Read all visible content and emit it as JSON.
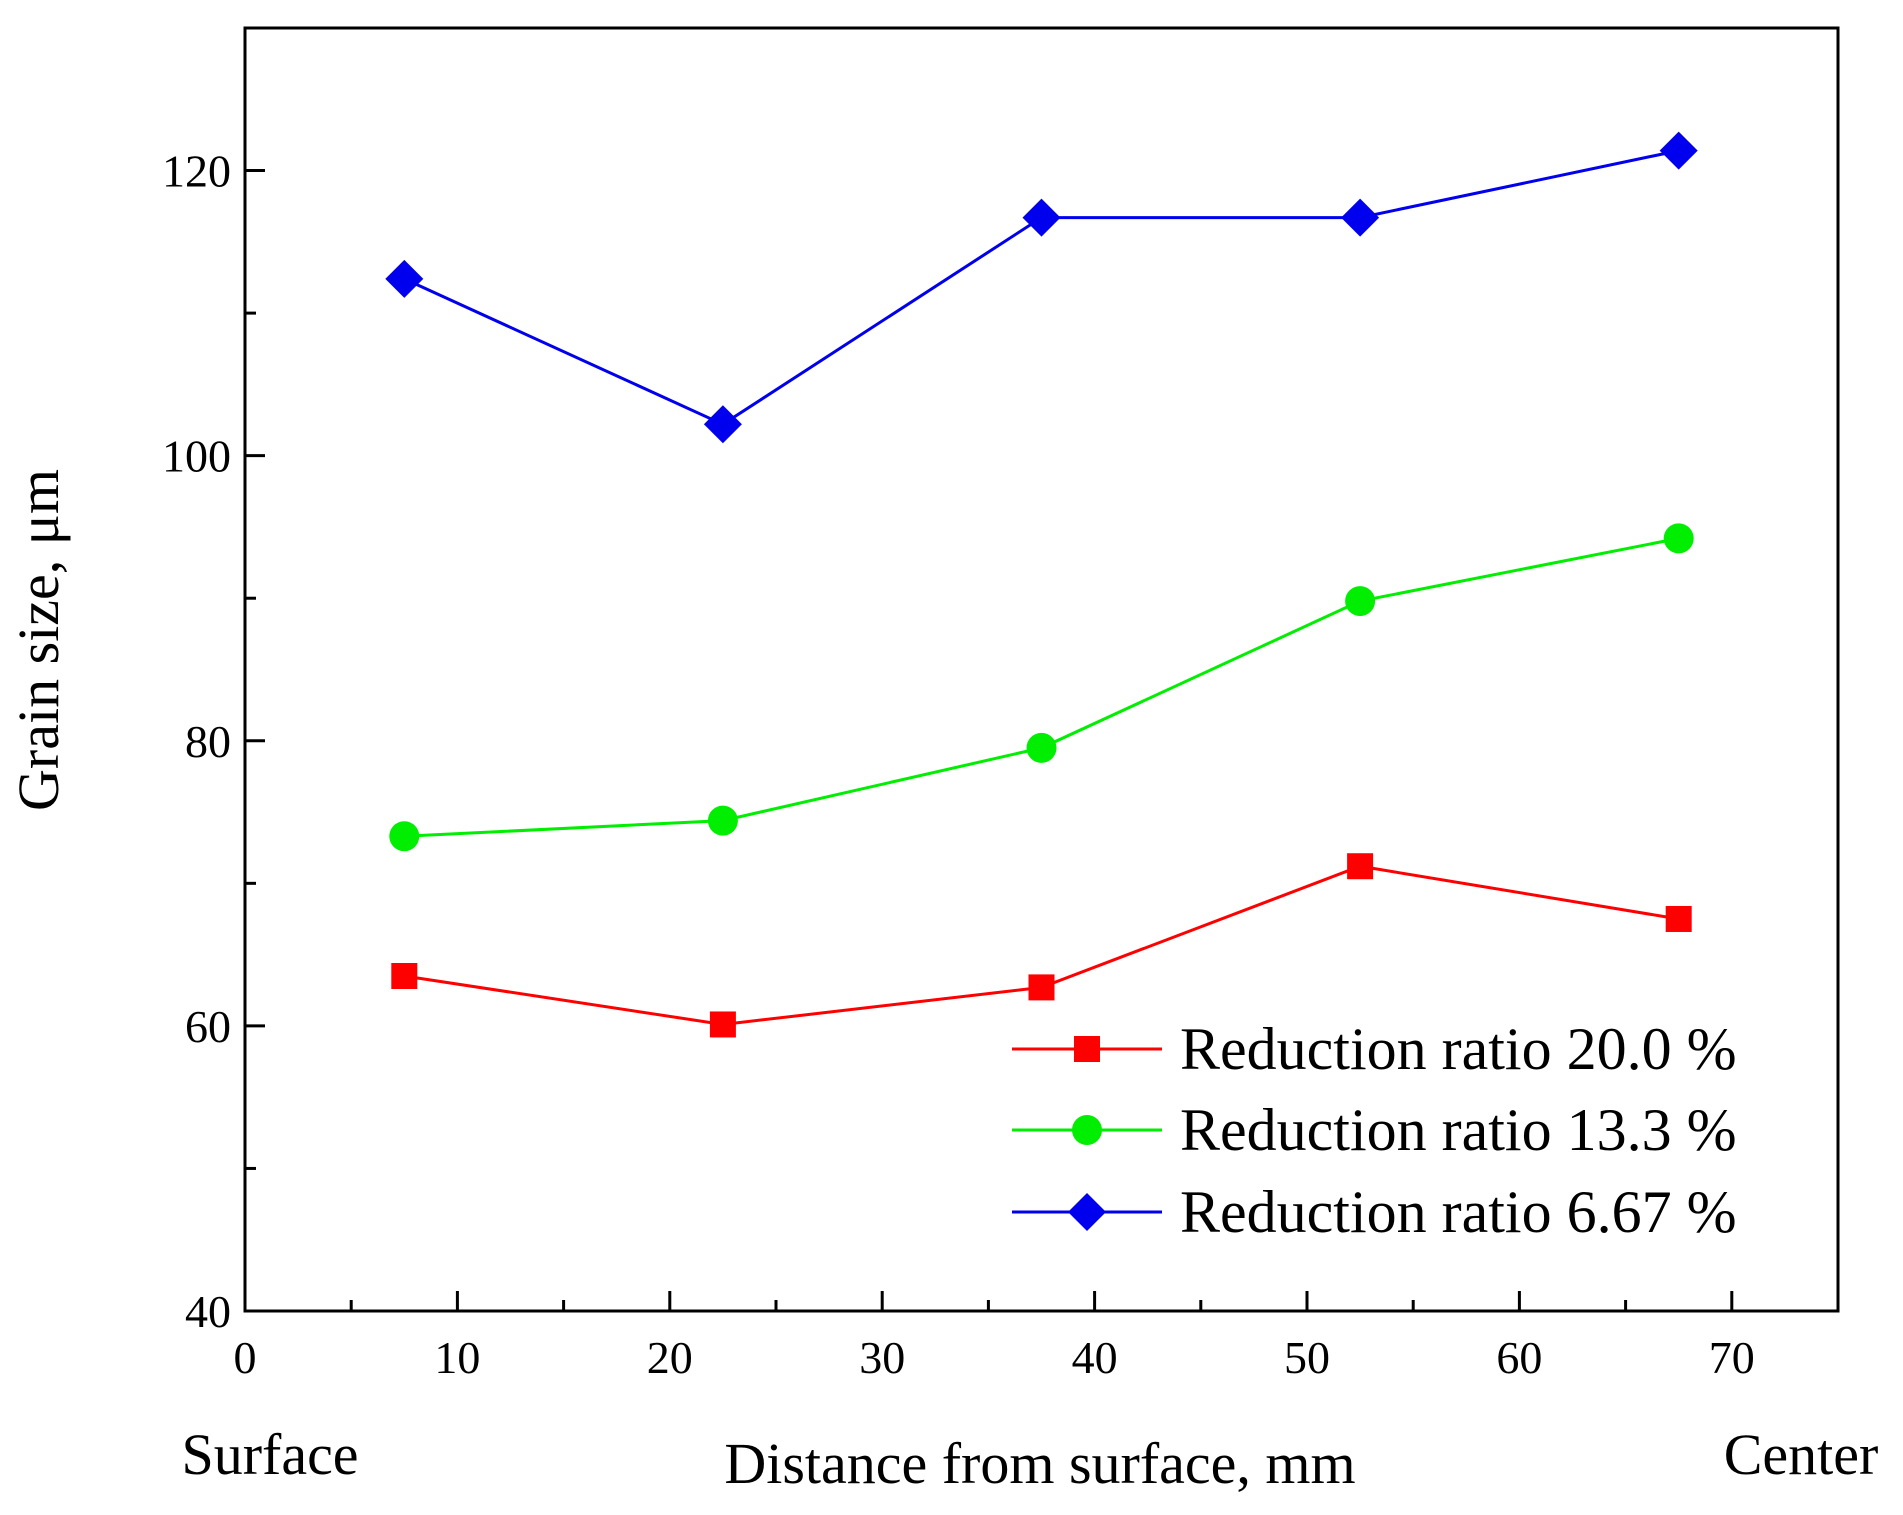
{
  "chart_data": {
    "type": "line",
    "title": "",
    "xlabel": "Distance from surface, mm",
    "ylabel": "Grain size, μm",
    "x_end_labels": {
      "left": "Surface",
      "right": "Center"
    },
    "xlim": [
      0,
      75
    ],
    "ylim": [
      40,
      130
    ],
    "xticks_major": [
      0,
      10,
      20,
      30,
      40,
      50,
      60,
      70
    ],
    "xticks_minor": [
      5,
      15,
      25,
      35,
      45,
      55,
      65
    ],
    "yticks_major": [
      40,
      60,
      80,
      100,
      120
    ],
    "yticks_minor": [
      50,
      70,
      90,
      110
    ],
    "x": [
      7.5,
      22.5,
      37.5,
      52.5,
      67.5
    ],
    "grid": false,
    "legend_position": "bottom-right",
    "series": [
      {
        "name": "Reduction ratio 20.0 %",
        "color": "#ff0000",
        "marker": "square",
        "values": [
          63.5,
          60.1,
          62.7,
          71.2,
          67.5
        ]
      },
      {
        "name": "Reduction ratio 13.3 %",
        "color": "#00ee00",
        "marker": "circle",
        "values": [
          73.3,
          74.4,
          79.5,
          89.8,
          94.2
        ]
      },
      {
        "name": "Reduction ratio 6.67 %",
        "color": "#0000ee",
        "marker": "diamond",
        "values": [
          112.4,
          102.2,
          116.7,
          116.7,
          121.4
        ]
      }
    ]
  }
}
